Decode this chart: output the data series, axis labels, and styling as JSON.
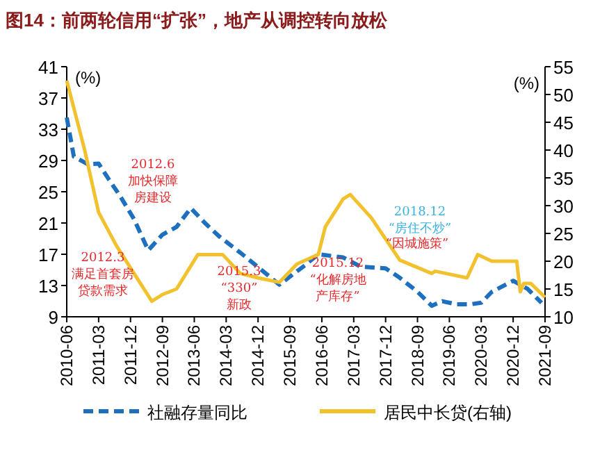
{
  "chart_data": {
    "type": "line",
    "title": "图14：前两轮信用“扩张”，地产从调控转向放松",
    "ylabel": "(%)",
    "y2label": "(%)",
    "xlim": [
      "2010-06",
      "2021-09"
    ],
    "xticks": [
      "2010-06",
      "2011-03",
      "2011-12",
      "2012-09",
      "2013-06",
      "2014-03",
      "2014-12",
      "2015-09",
      "2016-06",
      "2017-03",
      "2017-12",
      "2018-09",
      "2019-06",
      "2020-03",
      "2020-12",
      "2021-09"
    ],
    "ylim": [
      9,
      41
    ],
    "yticks": [
      9,
      13,
      17,
      21,
      25,
      29,
      33,
      37,
      41
    ],
    "y2lim": [
      10,
      55
    ],
    "y2ticks": [
      10,
      15,
      20,
      25,
      30,
      35,
      40,
      45,
      50,
      55
    ],
    "legend": "bottom",
    "grid": false,
    "series": [
      {
        "name": "社融存量同比",
        "color": "#1f6fbf",
        "line_style": "dashed",
        "x": [
          "2010-06",
          "2010-08",
          "2010-12",
          "2011-03",
          "2011-06",
          "2011-09",
          "2012-01",
          "2012-05",
          "2012-09",
          "2013-01",
          "2013-05",
          "2013-09",
          "2014-01",
          "2014-07",
          "2015-01",
          "2015-06",
          "2015-10",
          "2016-01",
          "2016-05",
          "2016-12",
          "2017-05",
          "2017-12",
          "2018-04",
          "2018-09",
          "2019-01",
          "2019-04",
          "2019-08",
          "2019-12",
          "2020-03",
          "2020-06",
          "2020-12",
          "2021-04",
          "2021-08"
        ],
        "values": [
          34.5,
          29.5,
          28.5,
          28.6,
          26.5,
          24.5,
          21.5,
          17.5,
          19.5,
          20.5,
          22.9,
          21,
          19.3,
          17.2,
          15,
          13.1,
          14.5,
          15.5,
          17,
          16.6,
          15.4,
          15.2,
          14,
          12.2,
          10.4,
          11,
          10.6,
          10.6,
          10.8,
          12.2,
          13.6,
          12.6,
          10.8
        ]
      },
      {
        "name": "居民中长贷(右轴)",
        "color": "#f2c12e",
        "axis": "y2",
        "x": [
          "2010-06",
          "2010-11",
          "2011-03",
          "2011-08",
          "2012-01",
          "2012-06",
          "2012-09",
          "2013-01",
          "2013-07",
          "2014-02",
          "2014-07",
          "2014-12",
          "2015-06",
          "2015-11",
          "2016-05",
          "2016-07",
          "2016-12",
          "2017-02",
          "2017-08",
          "2018-04",
          "2019-01",
          "2019-02",
          "2019-11",
          "2020-02",
          "2020-06",
          "2020-12",
          "2021-01",
          "2021-02",
          "2021-03",
          "2021-05",
          "2021-09"
        ],
        "values": [
          52.5,
          40.2,
          28.8,
          22.8,
          17.8,
          12.8,
          14,
          15,
          21.2,
          21.2,
          17.8,
          17,
          16.2,
          19.5,
          21.2,
          26.2,
          31.2,
          32,
          27.8,
          20.2,
          17.8,
          18.2,
          17,
          21.2,
          20,
          20,
          20,
          14.5,
          16,
          16,
          13.5
        ]
      }
    ],
    "annotations": [
      "2012.6\n加快保障房建设",
      "2012.3\n满足首套房贷款需求",
      "2015.3\n“330”\n新政",
      "2015.12\n“化解房地产库存”",
      "2018.12\n“房住不炒”",
      "“因城施策”"
    ]
  }
}
